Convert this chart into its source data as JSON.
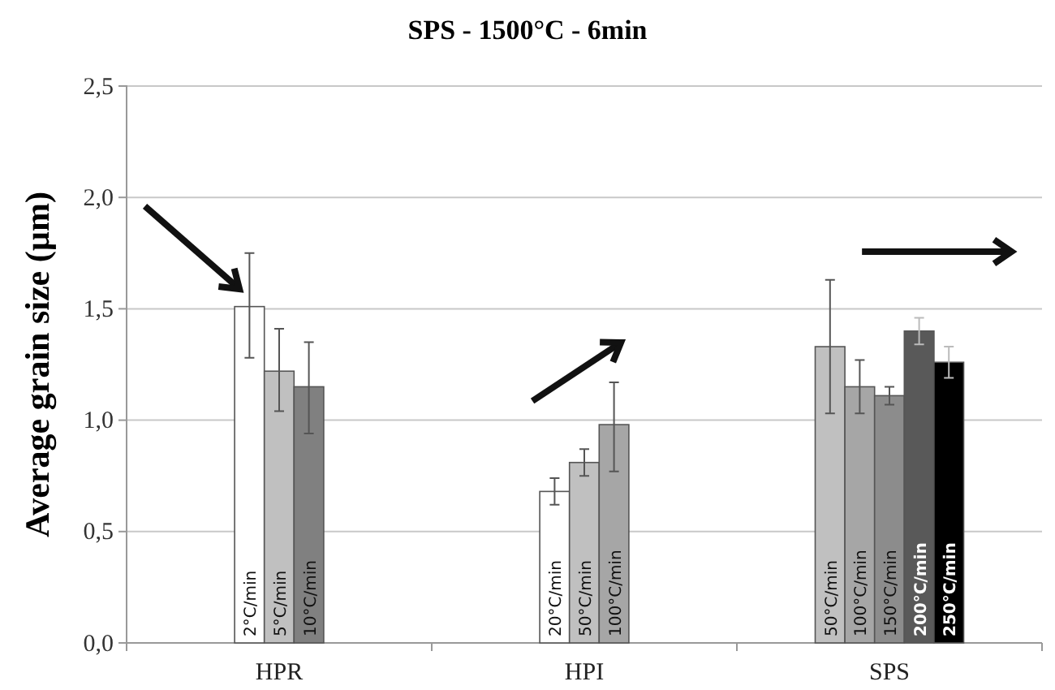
{
  "chart_data": {
    "type": "bar",
    "title": "SPS - 1500°C - 6min",
    "ylabel": "Average grain size (µm)",
    "categories": [
      "HPR",
      "HPI",
      "SPS"
    ],
    "series": [
      {
        "name": "2°C/min",
        "color": "#ffffff",
        "values": [
          1.51,
          null,
          null
        ],
        "errors": [
          [
            1.28,
            1.75
          ],
          null,
          null
        ]
      },
      {
        "name": "5°C/min",
        "color": "#c0c0c0",
        "values": [
          1.22,
          null,
          null
        ],
        "errors": [
          [
            1.04,
            1.41
          ],
          null,
          null
        ]
      },
      {
        "name": "10°C/min",
        "color": "#808080",
        "values": [
          1.15,
          null,
          null
        ],
        "errors": [
          [
            0.94,
            1.35
          ],
          null,
          null
        ]
      },
      {
        "name": "20°C/min",
        "color": "#ffffff",
        "values": [
          null,
          0.68,
          null
        ],
        "errors": [
          null,
          [
            0.62,
            0.74
          ],
          null
        ]
      },
      {
        "name": "50°C/min",
        "color": "#c0c0c0",
        "values": [
          null,
          0.81,
          null
        ],
        "errors": [
          null,
          [
            0.75,
            0.87
          ],
          null
        ]
      },
      {
        "name": "100°C/min",
        "color": "#a6a6a6",
        "values": [
          null,
          0.98,
          null
        ],
        "errors": [
          null,
          [
            0.77,
            1.17
          ],
          null
        ]
      },
      {
        "name": "50°C/min",
        "color": "#c0c0c0",
        "values": [
          null,
          null,
          1.33
        ],
        "errors": [
          null,
          null,
          [
            1.03,
            1.63
          ]
        ]
      },
      {
        "name": "100°C/min",
        "color": "#a6a6a6",
        "values": [
          null,
          null,
          1.15
        ],
        "errors": [
          null,
          null,
          [
            1.03,
            1.27
          ]
        ]
      },
      {
        "name": "150°C/min",
        "color": "#8c8c8c",
        "values": [
          null,
          null,
          1.11
        ],
        "errors": [
          null,
          null,
          [
            1.07,
            1.15
          ]
        ]
      },
      {
        "name": "200°C/min",
        "color": "#595959",
        "values": [
          null,
          null,
          1.4
        ],
        "errors": [
          null,
          null,
          [
            1.34,
            1.46
          ]
        ]
      },
      {
        "name": "250°C/min",
        "color": "#000000",
        "values": [
          null,
          null,
          1.26
        ],
        "errors": [
          null,
          null,
          [
            1.19,
            1.33
          ]
        ]
      }
    ],
    "ylim": [
      0,
      2.5
    ],
    "yticks": [
      {
        "value": 0,
        "label": "0,0"
      },
      {
        "value": 0.5,
        "label": "0,5"
      },
      {
        "value": 1,
        "label": "1,0"
      },
      {
        "value": 1.5,
        "label": "1,5"
      },
      {
        "value": 2,
        "label": "2,0"
      },
      {
        "value": 2.5,
        "label": "2,5"
      }
    ],
    "grid": "y"
  }
}
